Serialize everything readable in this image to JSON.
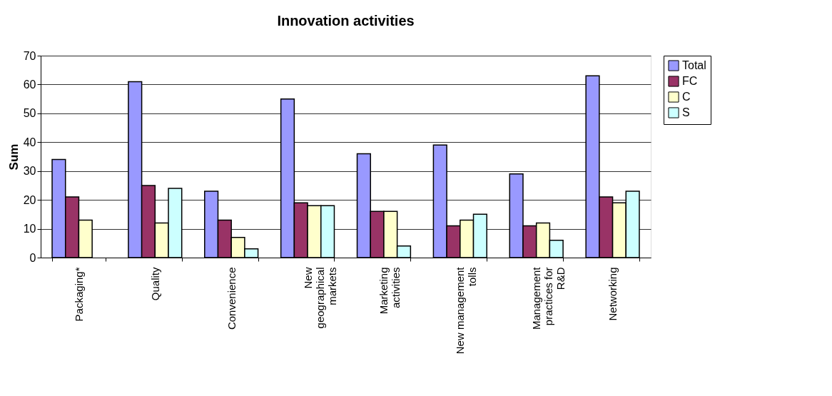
{
  "chart_data": {
    "type": "bar",
    "title": "Innovation activities",
    "ylabel": "Sum",
    "categories": [
      "Packaging*",
      "Quality",
      "Convenience",
      "New geographical markets",
      "Marketing activities",
      "New management tolls",
      "Management practices for R&D",
      "Networking"
    ],
    "series": [
      {
        "name": "Total",
        "color": "#9999ff",
        "values": [
          34,
          61,
          23,
          55,
          36,
          39,
          29,
          63
        ]
      },
      {
        "name": "FC",
        "color": "#993366",
        "values": [
          21,
          25,
          13,
          19,
          16,
          11,
          11,
          21
        ]
      },
      {
        "name": "C",
        "color": "#ffffcc",
        "values": [
          13,
          12,
          7,
          18,
          16,
          13,
          12,
          19
        ]
      },
      {
        "name": "S",
        "color": "#ccffff",
        "values": [
          null,
          24,
          3,
          18,
          4,
          15,
          6,
          23
        ]
      }
    ],
    "ylim": [
      0,
      70
    ],
    "yticks": [
      0,
      10,
      20,
      30,
      40,
      50,
      60,
      70
    ],
    "grid": "y",
    "legend": "right"
  }
}
